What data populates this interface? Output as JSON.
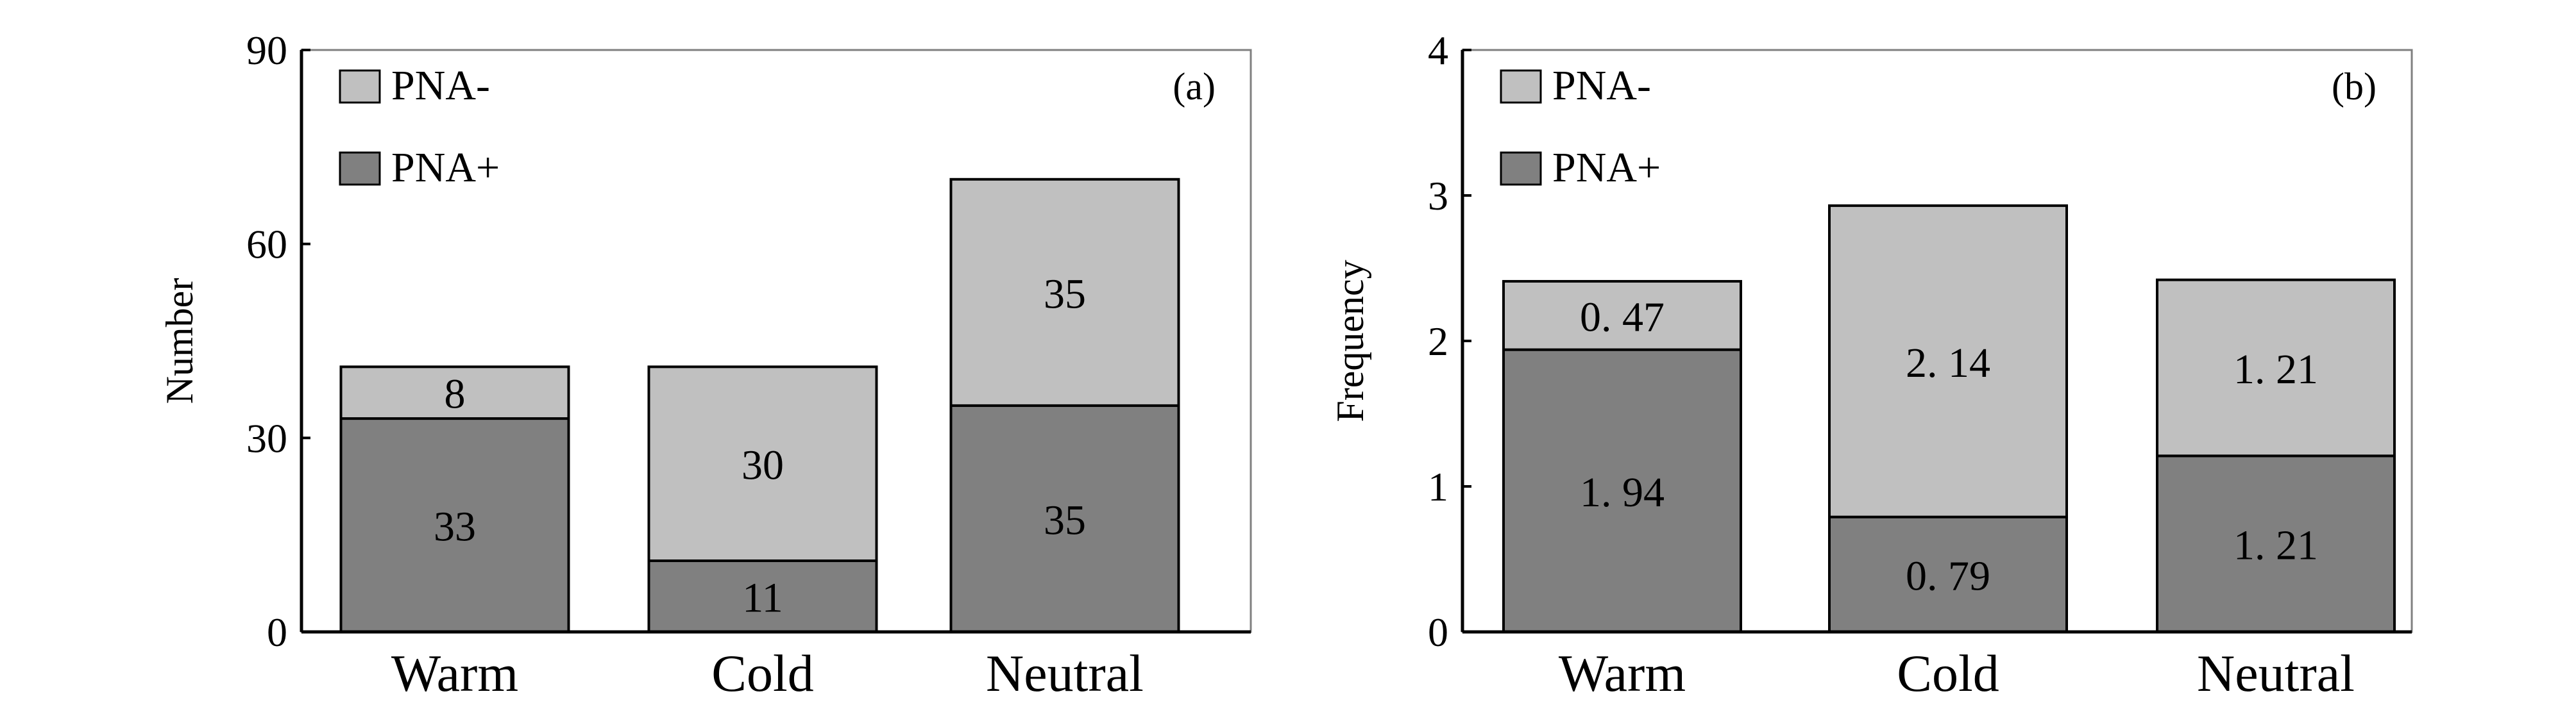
{
  "colors": {
    "pna_minus": "#c0c0c0",
    "pna_plus": "#808080",
    "axis": "#000000",
    "frame": "#808080"
  },
  "chart_data": [
    {
      "type": "bar",
      "stacked": true,
      "panel_label": "(a)",
      "title": "",
      "xlabel": "",
      "ylabel": "Number",
      "categories": [
        "Warm",
        "Cold",
        "Neutral"
      ],
      "ylim": [
        0,
        90
      ],
      "yticks": [
        "0",
        "30",
        "60",
        "90"
      ],
      "legend_position": "top-left",
      "series": [
        {
          "name": "PNA+",
          "values": [
            33,
            11,
            35
          ],
          "labels": [
            "33",
            "11",
            "35"
          ]
        },
        {
          "name": "PNA-",
          "values": [
            8,
            30,
            35
          ],
          "labels": [
            "8",
            "30",
            "35"
          ]
        }
      ]
    },
    {
      "type": "bar",
      "stacked": true,
      "panel_label": "(b)",
      "title": "",
      "xlabel": "",
      "ylabel": "Frequency",
      "categories": [
        "Warm",
        "Cold",
        "Neutral"
      ],
      "ylim": [
        0,
        4
      ],
      "yticks": [
        "0",
        "1",
        "2",
        "3",
        "4"
      ],
      "legend_position": "top-left",
      "series": [
        {
          "name": "PNA+",
          "values": [
            1.94,
            0.79,
            1.21
          ],
          "labels": [
            "1. 94",
            "0. 79",
            "1. 21"
          ]
        },
        {
          "name": "PNA-",
          "values": [
            0.47,
            2.14,
            1.21
          ],
          "labels": [
            "0. 47",
            "2. 14",
            "1. 21"
          ]
        }
      ]
    }
  ]
}
